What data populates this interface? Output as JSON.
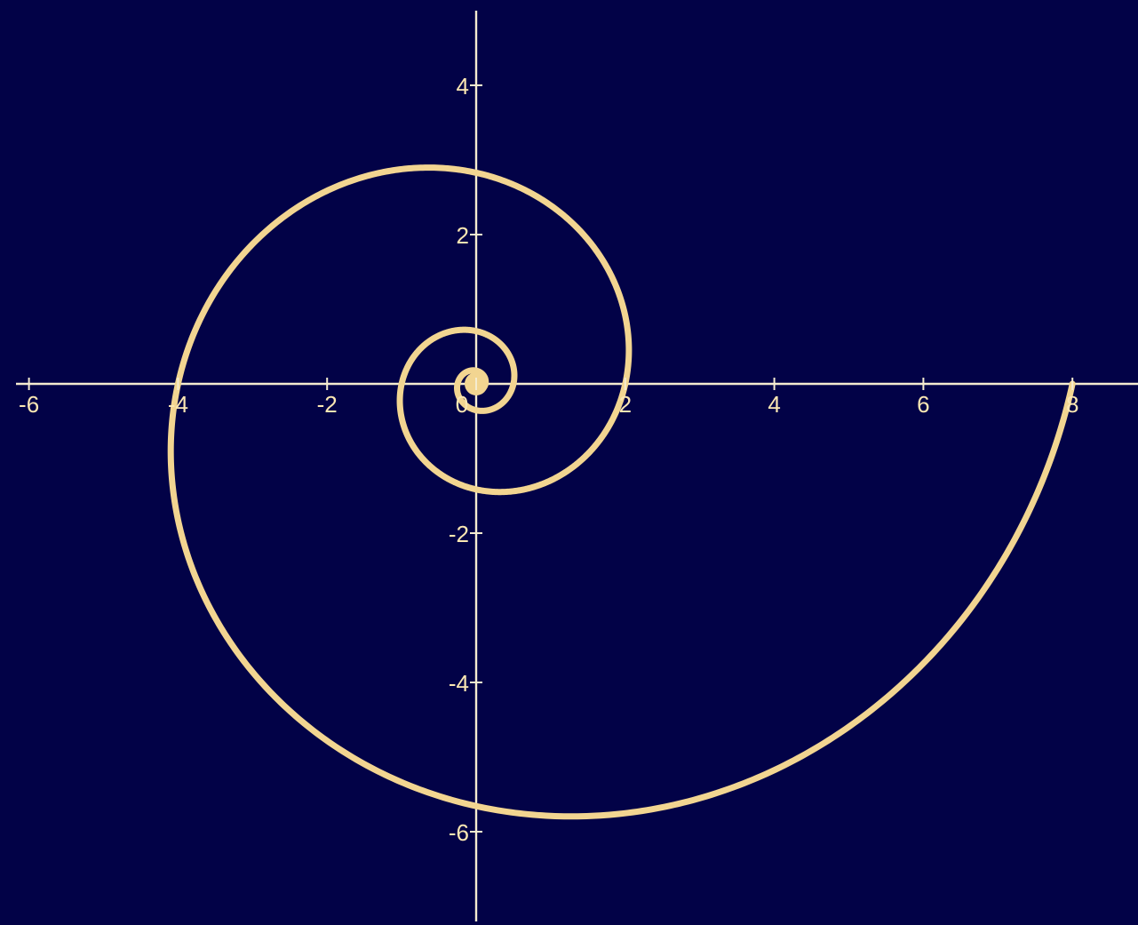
{
  "chart_data": {
    "type": "line",
    "title": "",
    "xlabel": "",
    "ylabel": "",
    "xlim": [
      -6.2,
      8.9
    ],
    "ylim": [
      -7.2,
      5
    ],
    "x_ticks": [
      -6,
      -4,
      -2,
      0,
      2,
      4,
      6,
      8
    ],
    "y_ticks": [
      -6,
      -4,
      -2,
      2,
      4
    ],
    "x_tick_labels": [
      "-6",
      "-4",
      "-2",
      "0",
      "2",
      "4",
      "6",
      "8"
    ],
    "y_tick_labels": [
      "-6",
      "-4",
      "-2",
      "2",
      "4"
    ],
    "grid": false,
    "series": [
      {
        "curve": "logarithmic spiral",
        "polar_equation": "r = 8 · 2^(−θ/π)",
        "theta_range": [
          0,
          30
        ],
        "start_point": [
          8,
          0
        ],
        "center": [
          0,
          0
        ]
      }
    ]
  },
  "colors": {
    "background": "#020247",
    "axes": "#f5ecd0",
    "curve": "#f2d591",
    "labels": "#fbe7b3"
  }
}
